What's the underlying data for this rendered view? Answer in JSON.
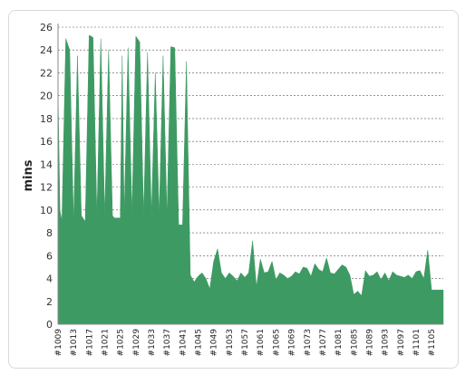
{
  "chart_data": {
    "type": "area",
    "title": "",
    "xlabel": "",
    "ylabel": "mins",
    "ylim": [
      0,
      26
    ],
    "yticks": [
      0,
      2,
      4,
      6,
      8,
      10,
      12,
      14,
      16,
      18,
      20,
      22,
      24,
      26
    ],
    "grid": true,
    "fill_color": "#3e9a63",
    "x_start": 1009,
    "x_end": 1108,
    "x_tick_labels": [
      "#1009",
      "#1013",
      "#1017",
      "#1021",
      "#1025",
      "#1029",
      "#1033",
      "#1037",
      "#1041",
      "#1045",
      "#1049",
      "#1053",
      "#1057",
      "#1061",
      "#1065",
      "#1069",
      "#1073",
      "#1077",
      "#1081",
      "#1085",
      "#1089",
      "#1093",
      "#1097",
      "#1101",
      "#1105"
    ],
    "points": [
      [
        1009,
        20.5
      ],
      [
        1009.5,
        10
      ],
      [
        1010,
        9
      ],
      [
        1011,
        25
      ],
      [
        1012,
        24
      ],
      [
        1013,
        9
      ],
      [
        1014,
        23.5
      ],
      [
        1015,
        9.5
      ],
      [
        1016,
        9
      ],
      [
        1017,
        25.3
      ],
      [
        1018,
        25.1
      ],
      [
        1019,
        9.5
      ],
      [
        1020,
        25
      ],
      [
        1021,
        9.5
      ],
      [
        1022,
        24
      ],
      [
        1023,
        9.5
      ],
      [
        1023.5,
        9.3
      ],
      [
        1025,
        9.3
      ],
      [
        1025.5,
        23.5
      ],
      [
        1026,
        9.5
      ],
      [
        1027,
        24.2
      ],
      [
        1028,
        9.6
      ],
      [
        1029,
        25.2
      ],
      [
        1030,
        24.7
      ],
      [
        1031,
        9.5
      ],
      [
        1032,
        23.8
      ],
      [
        1033,
        9.5
      ],
      [
        1034,
        22
      ],
      [
        1035,
        9.5
      ],
      [
        1036,
        23.5
      ],
      [
        1037,
        9.5
      ],
      [
        1038,
        24.3
      ],
      [
        1039,
        24.2
      ],
      [
        1040,
        8.7
      ],
      [
        1041,
        8.7
      ],
      [
        1042,
        23
      ],
      [
        1043,
        4.3
      ],
      [
        1044,
        3.7
      ],
      [
        1045,
        4.2
      ],
      [
        1046,
        4.5
      ],
      [
        1047,
        4
      ],
      [
        1048,
        3.1
      ],
      [
        1049,
        5.5
      ],
      [
        1050,
        6.6
      ],
      [
        1051,
        4.5
      ],
      [
        1052,
        4
      ],
      [
        1053,
        4.5
      ],
      [
        1054,
        4.2
      ],
      [
        1055,
        3.8
      ],
      [
        1056,
        4.5
      ],
      [
        1057,
        4.1
      ],
      [
        1058,
        4.5
      ],
      [
        1059,
        7.3
      ],
      [
        1060,
        3.3
      ],
      [
        1061,
        5.7
      ],
      [
        1062,
        4.5
      ],
      [
        1063,
        4.6
      ],
      [
        1064,
        5.5
      ],
      [
        1065,
        3.9
      ],
      [
        1066,
        4.5
      ],
      [
        1067,
        4.3
      ],
      [
        1068,
        4
      ],
      [
        1069,
        4.2
      ],
      [
        1070,
        4.6
      ],
      [
        1071,
        4.4
      ],
      [
        1072,
        5
      ],
      [
        1073,
        4.9
      ],
      [
        1074,
        4.2
      ],
      [
        1075,
        5.3
      ],
      [
        1076,
        4.8
      ],
      [
        1077,
        4.6
      ],
      [
        1078,
        5.8
      ],
      [
        1079,
        4.5
      ],
      [
        1080,
        4.4
      ],
      [
        1081,
        4.8
      ],
      [
        1082,
        5.2
      ],
      [
        1083,
        5
      ],
      [
        1084,
        4.3
      ],
      [
        1085,
        2.6
      ],
      [
        1086,
        2.9
      ],
      [
        1087,
        2.5
      ],
      [
        1088,
        4.7
      ],
      [
        1089,
        4.2
      ],
      [
        1090,
        4.3
      ],
      [
        1091,
        4.6
      ],
      [
        1092,
        3.9
      ],
      [
        1093,
        4.5
      ],
      [
        1094,
        3.8
      ],
      [
        1095,
        4.6
      ],
      [
        1096,
        4.3
      ],
      [
        1097,
        4.2
      ],
      [
        1098,
        4.1
      ],
      [
        1099,
        4.3
      ],
      [
        1100,
        4
      ],
      [
        1101,
        4.6
      ],
      [
        1102,
        4.7
      ],
      [
        1103,
        4
      ],
      [
        1104,
        6.5
      ],
      [
        1105,
        3
      ],
      [
        1106,
        3
      ],
      [
        1108,
        3
      ]
    ]
  }
}
